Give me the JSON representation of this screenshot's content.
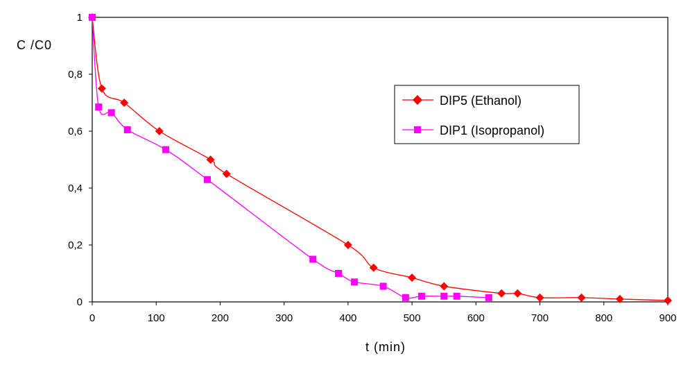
{
  "chart_data": {
    "type": "line",
    "title": "",
    "xlabel": "t (min)",
    "ylabel": "C /C0",
    "xlim": [
      0,
      900
    ],
    "ylim": [
      0,
      1
    ],
    "xticks": [
      0,
      100,
      200,
      300,
      400,
      500,
      600,
      700,
      800,
      900
    ],
    "yticks": [
      0,
      0.2,
      0.4,
      0.6,
      0.8,
      1
    ],
    "ytick_labels": [
      "0",
      "0,2",
      "0,4",
      "0,6",
      "0,8",
      "1"
    ],
    "grid": false,
    "legend_position": "right",
    "series": [
      {
        "name": "DIP5 (Ethanol)",
        "color": "#ff0000",
        "marker": "diamond",
        "x": [
          0,
          15,
          50,
          105,
          185,
          210,
          400,
          440,
          500,
          550,
          640,
          665,
          700,
          765,
          825,
          900
        ],
        "y": [
          1.0,
          0.75,
          0.7,
          0.6,
          0.5,
          0.45,
          0.2,
          0.12,
          0.085,
          0.055,
          0.03,
          0.03,
          0.015,
          0.015,
          0.01,
          0.005
        ]
      },
      {
        "name": "DIP1 (Isopropanol)",
        "color": "#ff00ff",
        "marker": "square",
        "x": [
          0,
          10,
          30,
          55,
          115,
          180,
          345,
          385,
          410,
          455,
          490,
          515,
          550,
          570,
          620
        ],
        "y": [
          1.0,
          0.685,
          0.665,
          0.605,
          0.535,
          0.43,
          0.15,
          0.1,
          0.07,
          0.055,
          0.015,
          0.02,
          0.02,
          0.02,
          0.015
        ]
      }
    ]
  }
}
